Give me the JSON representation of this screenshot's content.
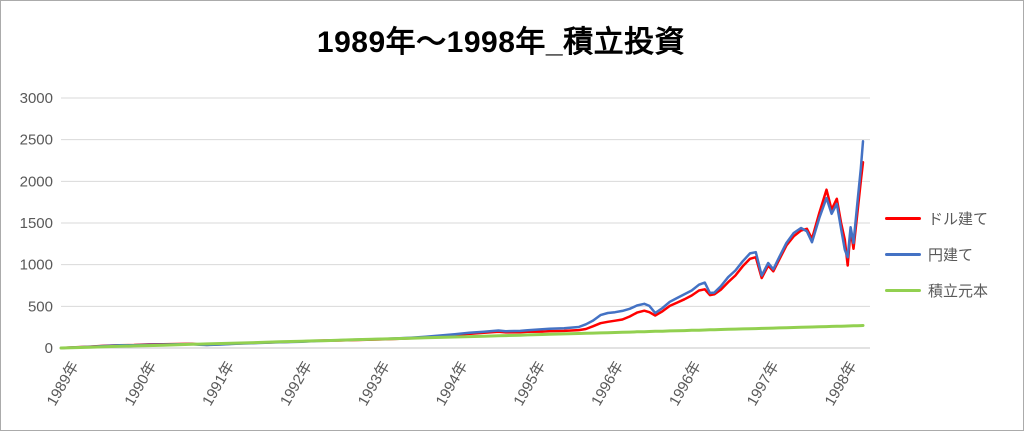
{
  "title": "1989年〜1998年_積立投資",
  "colors": {
    "dollar": "#FF0000",
    "yen": "#4472C4",
    "principal": "#92D050",
    "grid": "#D9D9D9",
    "axis": "#C6C6C6",
    "tick_text": "#595959",
    "title_text": "#000000",
    "background": "#FFFFFF"
  },
  "legend": {
    "items": [
      {
        "label": "ドル建て",
        "series_key": "dollar"
      },
      {
        "label": "円建て",
        "series_key": "yen"
      },
      {
        "label": "積立元本",
        "series_key": "principal"
      }
    ]
  },
  "y_axis": {
    "ticks": [
      "0",
      "500",
      "1000",
      "1500",
      "2000",
      "2500",
      "3000"
    ],
    "min": 0,
    "max": 3000
  },
  "x_axis": {
    "ticks": [
      "1989年",
      "1990年",
      "1991年",
      "1992年",
      "1993年",
      "1994年",
      "1995年",
      "1996年",
      "1996年",
      "1997年",
      "1998年"
    ]
  },
  "chart_data": {
    "type": "line",
    "title": "1989年〜1998年_積立投資",
    "xlabel": "",
    "ylabel": "",
    "ylim": [
      0,
      3000
    ],
    "grid": "horizontal",
    "legend_position": "right",
    "x_unit": "months since 1989-01 (approx, 0 to 110)",
    "xlabels": [
      "1989年",
      "1990年",
      "1991年",
      "1992年",
      "1993年",
      "1994年",
      "1995年",
      "1996年",
      "1996年",
      "1997年",
      "1998年"
    ],
    "x": [
      0,
      2,
      4,
      6,
      8,
      10,
      12,
      14,
      16,
      18,
      19,
      20,
      22,
      24,
      27,
      30,
      33,
      35,
      36,
      38,
      40,
      42,
      44,
      46,
      48,
      50,
      52,
      54,
      56,
      58,
      60,
      61,
      63,
      64,
      66,
      67,
      69,
      71,
      72,
      73,
      74,
      75,
      76,
      77,
      78,
      79,
      80,
      80.7,
      81.5,
      82.5,
      83.5,
      84.5,
      85.5,
      86.5,
      87.5,
      88.3,
      89,
      89.6,
      90.5,
      91.5,
      92.5,
      93.5,
      94.5,
      95.3,
      96.1,
      97,
      97.7,
      98.5,
      99.5,
      100.5,
      101.5,
      102.3,
      103,
      104,
      105,
      105.7,
      106.4,
      107,
      107.5,
      107.9,
      108.3,
      108.7,
      109.2,
      109.7,
      110
    ],
    "series": [
      {
        "name": "ドル建て",
        "color": "#FF0000",
        "values": [
          0,
          8,
          17,
          26,
          34,
          36,
          43,
          44,
          48,
          50,
          42,
          37,
          44,
          54,
          63,
          71,
          79,
          88,
          90,
          90,
          95,
          99,
          103,
          109,
          117,
          128,
          141,
          155,
          169,
          182,
          195,
          187,
          188,
          196,
          197,
          203,
          205,
          215,
          228,
          262,
          298,
          315,
          328,
          342,
          378,
          425,
          448,
          430,
          390,
          440,
          505,
          545,
          585,
          630,
          690,
          705,
          635,
          645,
          700,
          790,
          870,
          980,
          1070,
          1090,
          840,
          990,
          920,
          1060,
          1230,
          1340,
          1410,
          1430,
          1310,
          1620,
          1900,
          1660,
          1790,
          1500,
          1300,
          990,
          1420,
          1190,
          1600,
          2000,
          2230
        ]
      },
      {
        "name": "円建て",
        "color": "#4472C4",
        "values": [
          0,
          7,
          16,
          24,
          32,
          34,
          40,
          42,
          45,
          47,
          40,
          36,
          42,
          50,
          60,
          68,
          76,
          84,
          88,
          92,
          98,
          103,
          108,
          115,
          124,
          136,
          150,
          166,
          182,
          196,
          210,
          202,
          205,
          214,
          224,
          232,
          238,
          252,
          285,
          330,
          395,
          420,
          430,
          445,
          470,
          510,
          530,
          505,
          420,
          480,
          555,
          600,
          645,
          690,
          760,
          785,
          660,
          665,
          740,
          850,
          930,
          1040,
          1135,
          1150,
          870,
          1020,
          945,
          1090,
          1260,
          1380,
          1440,
          1400,
          1270,
          1560,
          1800,
          1610,
          1730,
          1430,
          1180,
          1090,
          1450,
          1260,
          1720,
          2150,
          2480
        ]
      },
      {
        "name": "積立元本",
        "color": "#92D050",
        "values": [
          0,
          5,
          10,
          15,
          20,
          25,
          29,
          34,
          39,
          44,
          47,
          49,
          54,
          59,
          66,
          74,
          81,
          86,
          88,
          93,
          98,
          103,
          108,
          113,
          118,
          123,
          127,
          132,
          137,
          142,
          147,
          149,
          154,
          157,
          162,
          164,
          169,
          174,
          176,
          179,
          181,
          184,
          186,
          189,
          191,
          194,
          196,
          198,
          200,
          202,
          205,
          207,
          209,
          212,
          214,
          216,
          218,
          220,
          222,
          224,
          227,
          229,
          232,
          233,
          235,
          238,
          239,
          241,
          244,
          246,
          249,
          251,
          252,
          255,
          257,
          259,
          261,
          262,
          263,
          264,
          265,
          266,
          268,
          269,
          270
        ]
      }
    ]
  }
}
